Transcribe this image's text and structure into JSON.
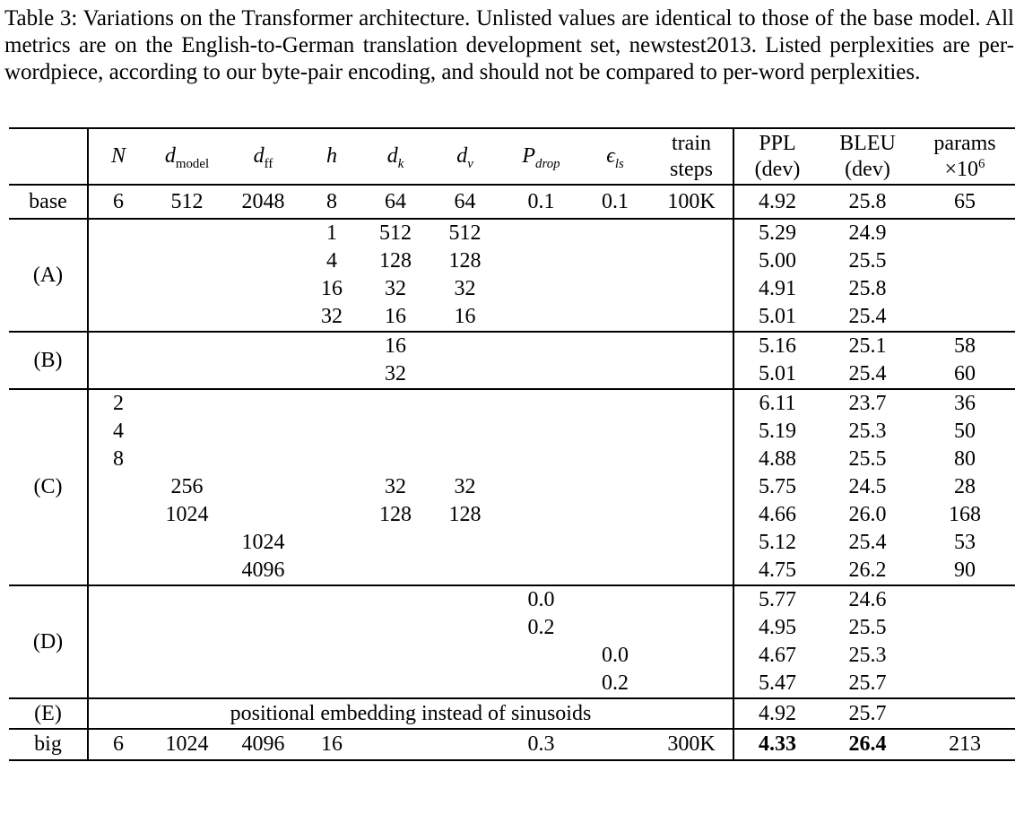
{
  "caption": "Table 3: Variations on the Transformer architecture. Unlisted values are identical to those of the base model. All metrics are on the English-to-German translation development set, newstest2013. Listed perplexities are per-wordpiece, according to our byte-pair encoding, and should not be compared to per-word perplexities.",
  "table": {
    "corner_label": "",
    "columns": [
      {
        "kind": "math",
        "main": "N"
      },
      {
        "kind": "math",
        "main": "d",
        "sub": "model",
        "sub_roman": true
      },
      {
        "kind": "math",
        "main": "d",
        "sub": "ff",
        "sub_roman": true
      },
      {
        "kind": "math",
        "main": "h"
      },
      {
        "kind": "math",
        "main": "d",
        "sub": "k"
      },
      {
        "kind": "math",
        "main": "d",
        "sub": "v"
      },
      {
        "kind": "math",
        "main": "P",
        "sub": "drop"
      },
      {
        "kind": "math",
        "main": "ϵ",
        "sub": "ls"
      },
      {
        "kind": "twoline",
        "line1": "train",
        "line2": "steps"
      },
      {
        "kind": "twoline",
        "line1": "PPL",
        "line2": "(dev)"
      },
      {
        "kind": "twoline",
        "line1": "BLEU",
        "line2": "(dev)"
      },
      {
        "kind": "twoline",
        "line1": "params",
        "line2": "×10",
        "line2_sup": "6"
      }
    ],
    "sections": [
      {
        "label": "base",
        "rows": [
          {
            "cells": [
              "6",
              "512",
              "2048",
              "8",
              "64",
              "64",
              "0.1",
              "0.1",
              "100K",
              "4.92",
              "25.8",
              "65"
            ]
          }
        ]
      },
      {
        "label": "(A)",
        "rows": [
          {
            "cells": [
              "",
              "",
              "",
              "1",
              "512",
              "512",
              "",
              "",
              "",
              "5.29",
              "24.9",
              ""
            ]
          },
          {
            "cells": [
              "",
              "",
              "",
              "4",
              "128",
              "128",
              "",
              "",
              "",
              "5.00",
              "25.5",
              ""
            ]
          },
          {
            "cells": [
              "",
              "",
              "",
              "16",
              "32",
              "32",
              "",
              "",
              "",
              "4.91",
              "25.8",
              ""
            ]
          },
          {
            "cells": [
              "",
              "",
              "",
              "32",
              "16",
              "16",
              "",
              "",
              "",
              "5.01",
              "25.4",
              ""
            ]
          }
        ]
      },
      {
        "label": "(B)",
        "rows": [
          {
            "cells": [
              "",
              "",
              "",
              "",
              "16",
              "",
              "",
              "",
              "",
              "5.16",
              "25.1",
              "58"
            ]
          },
          {
            "cells": [
              "",
              "",
              "",
              "",
              "32",
              "",
              "",
              "",
              "",
              "5.01",
              "25.4",
              "60"
            ]
          }
        ]
      },
      {
        "label": "(C)",
        "rows": [
          {
            "cells": [
              "2",
              "",
              "",
              "",
              "",
              "",
              "",
              "",
              "",
              "6.11",
              "23.7",
              "36"
            ]
          },
          {
            "cells": [
              "4",
              "",
              "",
              "",
              "",
              "",
              "",
              "",
              "",
              "5.19",
              "25.3",
              "50"
            ]
          },
          {
            "cells": [
              "8",
              "",
              "",
              "",
              "",
              "",
              "",
              "",
              "",
              "4.88",
              "25.5",
              "80"
            ]
          },
          {
            "cells": [
              "",
              "256",
              "",
              "",
              "32",
              "32",
              "",
              "",
              "",
              "5.75",
              "24.5",
              "28"
            ]
          },
          {
            "cells": [
              "",
              "1024",
              "",
              "",
              "128",
              "128",
              "",
              "",
              "",
              "4.66",
              "26.0",
              "168"
            ]
          },
          {
            "cells": [
              "",
              "",
              "1024",
              "",
              "",
              "",
              "",
              "",
              "",
              "5.12",
              "25.4",
              "53"
            ]
          },
          {
            "cells": [
              "",
              "",
              "4096",
              "",
              "",
              "",
              "",
              "",
              "",
              "4.75",
              "26.2",
              "90"
            ]
          }
        ]
      },
      {
        "label": "(D)",
        "rows": [
          {
            "cells": [
              "",
              "",
              "",
              "",
              "",
              "",
              "0.0",
              "",
              "",
              "5.77",
              "24.6",
              ""
            ]
          },
          {
            "cells": [
              "",
              "",
              "",
              "",
              "",
              "",
              "0.2",
              "",
              "",
              "4.95",
              "25.5",
              ""
            ]
          },
          {
            "cells": [
              "",
              "",
              "",
              "",
              "",
              "",
              "",
              "0.0",
              "",
              "4.67",
              "25.3",
              ""
            ]
          },
          {
            "cells": [
              "",
              "",
              "",
              "",
              "",
              "",
              "",
              "0.2",
              "",
              "5.47",
              "25.7",
              ""
            ]
          }
        ]
      },
      {
        "label": "(E)",
        "rows": [
          {
            "span_text": "positional embedding instead of sinusoids",
            "cells": [
              "4.92",
              "25.7",
              ""
            ]
          }
        ]
      },
      {
        "label": "big",
        "rows": [
          {
            "cells": [
              "6",
              "1024",
              "4096",
              "16",
              "",
              "",
              "0.3",
              "",
              "300K",
              "4.33",
              "26.4",
              "213"
            ],
            "bold": [
              9,
              10
            ]
          }
        ]
      }
    ]
  }
}
